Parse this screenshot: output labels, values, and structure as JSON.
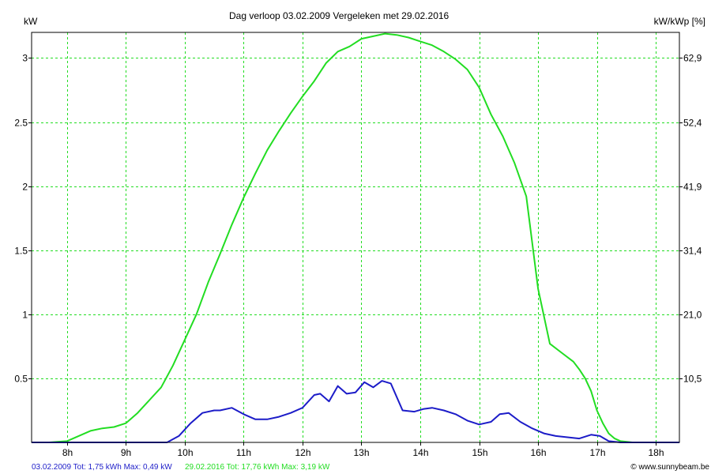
{
  "chart_data": {
    "type": "line",
    "title": "Dag  verloop 03.02.2009   Vergeleken met 29.02.2016",
    "ylabel_left": "kW",
    "ylabel_right": "kW/kWp [%]",
    "grid": true,
    "x_range_hours": [
      7.4,
      18.4
    ],
    "ylim": [
      0,
      3.2
    ],
    "x_ticks": [
      {
        "hour": 8,
        "label": "8h"
      },
      {
        "hour": 9,
        "label": "9h"
      },
      {
        "hour": 10,
        "label": "10h"
      },
      {
        "hour": 11,
        "label": "11h"
      },
      {
        "hour": 12,
        "label": "12h"
      },
      {
        "hour": 13,
        "label": "13h"
      },
      {
        "hour": 14,
        "label": "14h"
      },
      {
        "hour": 15,
        "label": "15h"
      },
      {
        "hour": 16,
        "label": "16h"
      },
      {
        "hour": 17,
        "label": "17h"
      },
      {
        "hour": 18,
        "label": "18h"
      }
    ],
    "y_ticks_left": [
      {
        "value": 0.5,
        "label": "0.5"
      },
      {
        "value": 1,
        "label": "1"
      },
      {
        "value": 1.5,
        "label": "1.5"
      },
      {
        "value": 2,
        "label": "2"
      },
      {
        "value": 2.5,
        "label": "2.5"
      },
      {
        "value": 3,
        "label": "3"
      }
    ],
    "y_ticks_right": [
      {
        "value": 0.5,
        "label": "10,5"
      },
      {
        "value": 1,
        "label": "21,0"
      },
      {
        "value": 1.5,
        "label": "31,4"
      },
      {
        "value": 2,
        "label": "41,9"
      },
      {
        "value": 2.5,
        "label": "52,4"
      },
      {
        "value": 3,
        "label": "62,9"
      }
    ],
    "series": [
      {
        "name": "29.02.2016",
        "color": "#22dd22",
        "x": [
          7.4,
          7.7,
          8.0,
          8.2,
          8.4,
          8.6,
          8.8,
          9.0,
          9.2,
          9.4,
          9.6,
          9.8,
          10.0,
          10.2,
          10.4,
          10.6,
          10.8,
          11.0,
          11.2,
          11.4,
          11.6,
          11.8,
          12.0,
          12.2,
          12.4,
          12.6,
          12.8,
          13.0,
          13.2,
          13.4,
          13.6,
          13.8,
          14.0,
          14.2,
          14.4,
          14.6,
          14.8,
          15.0,
          15.2,
          15.4,
          15.6,
          15.8,
          16.0,
          16.2,
          16.4,
          16.6,
          16.7,
          16.8,
          16.9,
          17.0,
          17.1,
          17.2,
          17.3,
          17.4,
          17.6,
          17.8,
          18.0,
          18.2,
          18.4
        ],
        "values": [
          0.0,
          0.0,
          0.01,
          0.05,
          0.09,
          0.11,
          0.12,
          0.15,
          0.23,
          0.33,
          0.43,
          0.6,
          0.8,
          1.0,
          1.25,
          1.47,
          1.7,
          1.91,
          2.1,
          2.28,
          2.43,
          2.57,
          2.7,
          2.82,
          2.96,
          3.05,
          3.09,
          3.15,
          3.17,
          3.19,
          3.18,
          3.16,
          3.13,
          3.1,
          3.05,
          2.99,
          2.91,
          2.77,
          2.56,
          2.39,
          2.18,
          1.92,
          1.2,
          0.77,
          0.7,
          0.63,
          0.57,
          0.5,
          0.4,
          0.25,
          0.15,
          0.07,
          0.03,
          0.01,
          0.0,
          0.0,
          0.0,
          0.0,
          0.0
        ]
      },
      {
        "name": "03.02.2009",
        "color": "#1c1cc8",
        "x": [
          7.4,
          9.7,
          9.9,
          10.1,
          10.3,
          10.5,
          10.6,
          10.8,
          11.0,
          11.2,
          11.4,
          11.6,
          11.8,
          12.0,
          12.2,
          12.3,
          12.45,
          12.6,
          12.75,
          12.9,
          13.05,
          13.2,
          13.35,
          13.5,
          13.7,
          13.9,
          14.05,
          14.2,
          14.4,
          14.6,
          14.8,
          15.0,
          15.2,
          15.35,
          15.5,
          15.7,
          15.9,
          16.1,
          16.3,
          16.5,
          16.7,
          16.9,
          17.05,
          17.2,
          17.4,
          18.4
        ],
        "values": [
          0.0,
          0.0,
          0.05,
          0.15,
          0.23,
          0.25,
          0.25,
          0.27,
          0.22,
          0.18,
          0.18,
          0.2,
          0.23,
          0.27,
          0.37,
          0.38,
          0.32,
          0.44,
          0.38,
          0.39,
          0.47,
          0.43,
          0.48,
          0.46,
          0.25,
          0.24,
          0.26,
          0.27,
          0.25,
          0.22,
          0.17,
          0.14,
          0.16,
          0.22,
          0.23,
          0.16,
          0.11,
          0.07,
          0.05,
          0.04,
          0.03,
          0.06,
          0.05,
          0.01,
          0.0,
          0.0
        ]
      }
    ]
  },
  "footer": {
    "stat_2009": "03.02.2009 Tot: 1,75 kWh Max: 0,49 kW",
    "stat_2016": "29.02.2016 Tot: 17,76 kWh Max: 3,19 kW",
    "copyright": "© www.sunnybeam.be",
    "color_2009": "#1c1cc8",
    "color_2016": "#22dd22"
  }
}
